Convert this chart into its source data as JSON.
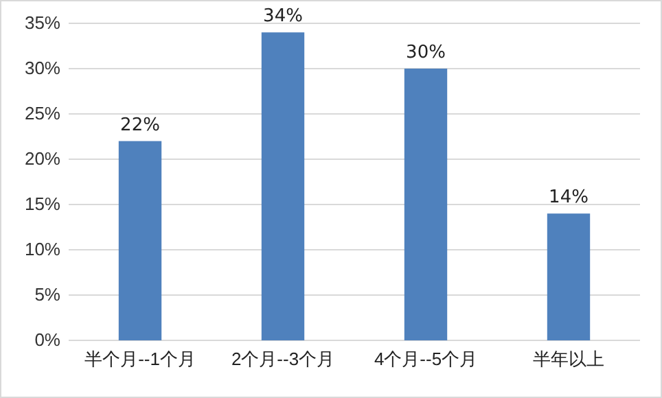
{
  "chart_data": {
    "type": "bar",
    "categories": [
      "半个月--1个月",
      "2个月--3个月",
      "4个月--5个月",
      "半年以上"
    ],
    "values": [
      22,
      34,
      30,
      14
    ],
    "value_labels": [
      "22%",
      "34%",
      "30%",
      "14%"
    ],
    "color": "#4f81bd",
    "ylim": [
      0,
      35
    ],
    "yticks": [
      {
        "value": 0,
        "label": "0%"
      },
      {
        "value": 5,
        "label": "5%"
      },
      {
        "value": 10,
        "label": "10%"
      },
      {
        "value": 15,
        "label": "15%"
      },
      {
        "value": 20,
        "label": "20%"
      },
      {
        "value": 25,
        "label": "25%"
      },
      {
        "value": 30,
        "label": "30%"
      },
      {
        "value": 35,
        "label": "35%"
      }
    ],
    "grid": "y"
  }
}
